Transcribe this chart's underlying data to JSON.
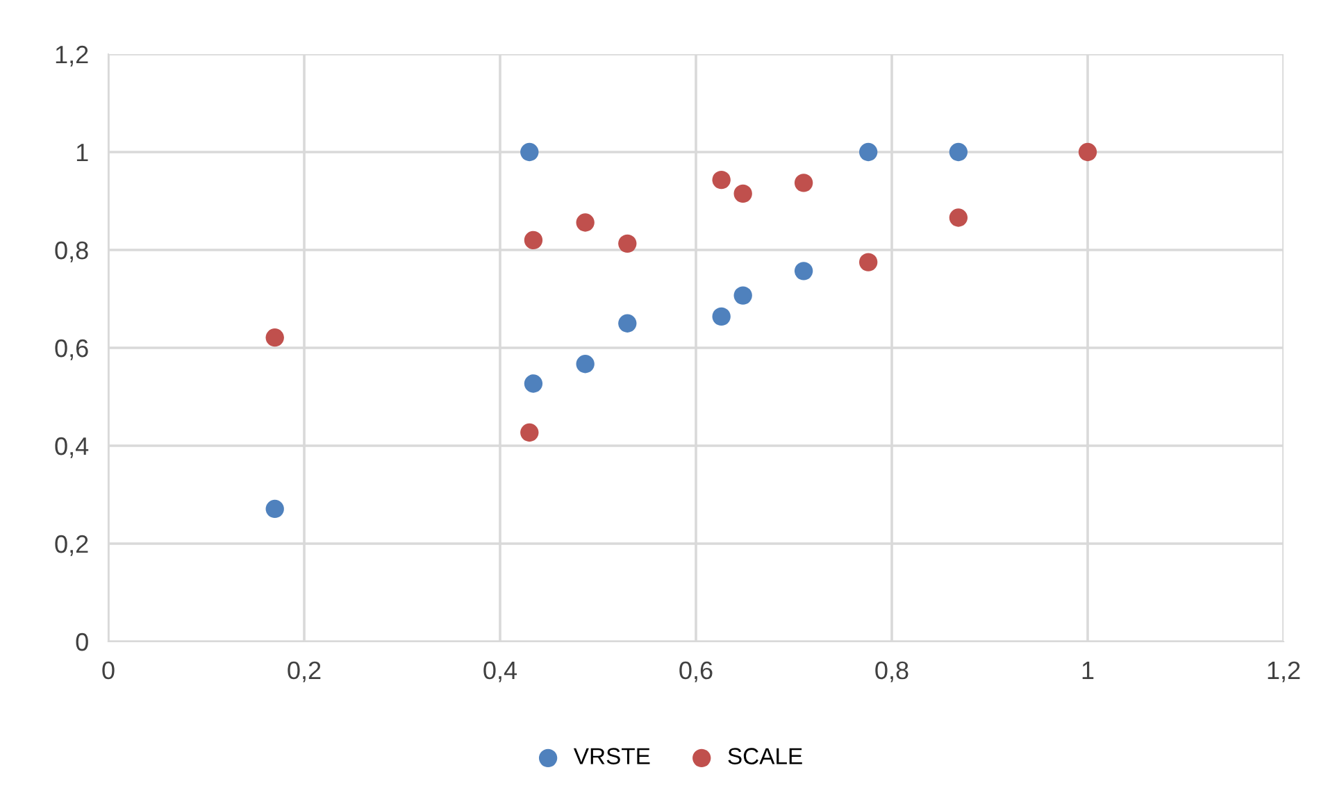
{
  "chart_data": {
    "type": "scatter",
    "x": [
      0.17,
      0.43,
      0.434,
      0.487,
      0.53,
      0.626,
      0.648,
      0.71,
      0.776,
      0.868,
      1
    ],
    "series": [
      {
        "name": "VRSTE",
        "color": "#4f81bd",
        "values": [
          0.271,
          1.0,
          0.527,
          0.567,
          0.65,
          0.664,
          0.707,
          0.757,
          1.0,
          1.0,
          null
        ]
      },
      {
        "name": "SCALE",
        "color": "#c0504d",
        "values": [
          0.621,
          0.427,
          0.82,
          0.856,
          0.813,
          0.943,
          0.915,
          0.937,
          0.775,
          0.866,
          1.0
        ]
      }
    ],
    "xlim": [
      0,
      1.2
    ],
    "ylim": [
      0,
      1.2
    ],
    "xticks": [
      0,
      {
        "value": 0.2,
        "label": "0,2"
      },
      {
        "value": 0.4,
        "label": "0,4"
      },
      {
        "value": 0.6,
        "label": "0,6"
      },
      {
        "value": 0.8,
        "label": "0,8"
      },
      1,
      {
        "value": 1.2,
        "label": "1,2"
      }
    ],
    "yticks": [
      0,
      {
        "value": 0.2,
        "label": "0,2"
      },
      {
        "value": 0.4,
        "label": "0,4"
      },
      {
        "value": 0.6,
        "label": "0,6"
      },
      {
        "value": 0.8,
        "label": "0,8"
      },
      1,
      {
        "value": 1.2,
        "label": "1,2"
      }
    ],
    "grid": true,
    "legend": "bottom",
    "marker": "circle"
  }
}
